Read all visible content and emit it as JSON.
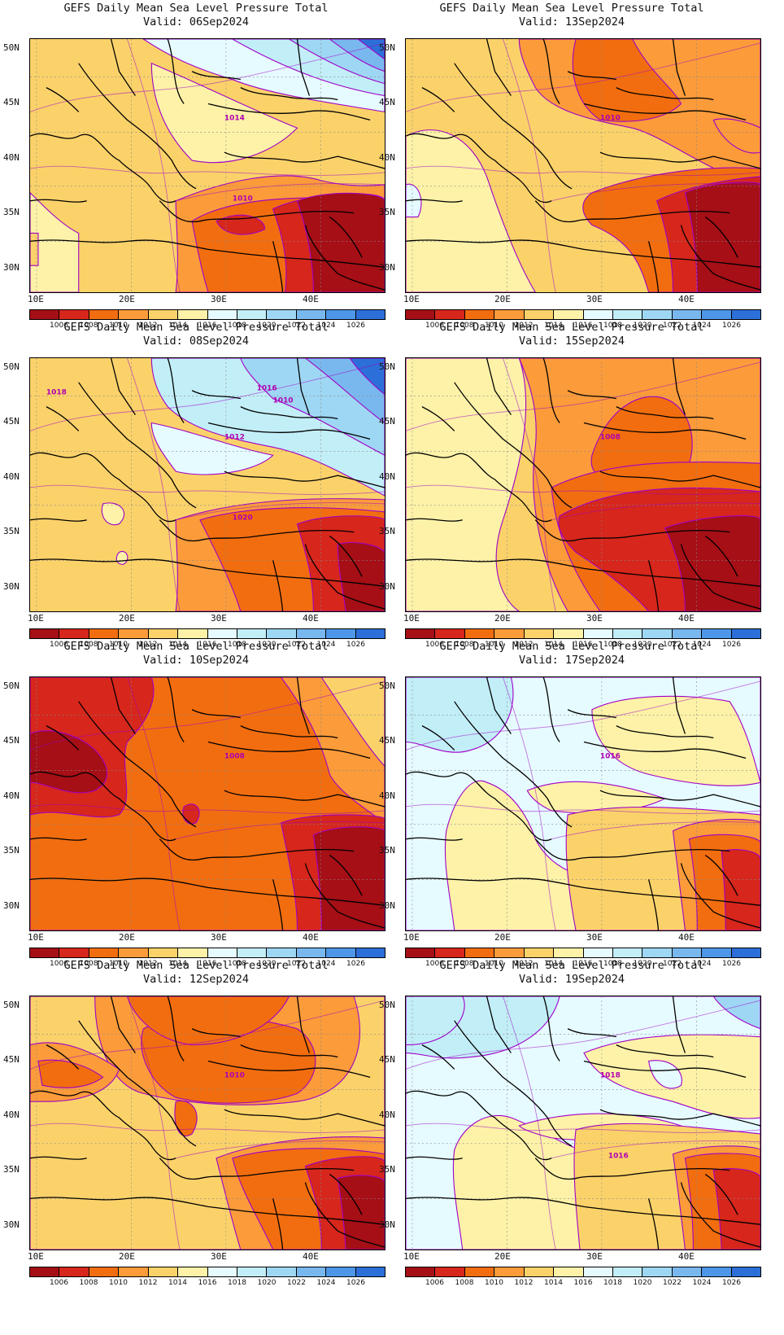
{
  "colorbar": {
    "labels": [
      "1006",
      "1008",
      "1010",
      "1012",
      "1014",
      "1016",
      "1018",
      "1020",
      "1022",
      "1024",
      "1026"
    ],
    "colors": [
      "#a50f15",
      "#d7261b",
      "#f26d0f",
      "#fb9b3a",
      "#fbd26a",
      "#fdf2a8",
      "#e6fbff",
      "#c2eef8",
      "#9ed7f4",
      "#79b8ef",
      "#4d96e8",
      "#2c6fd8"
    ]
  },
  "axes": {
    "lat_labels": [
      "50N",
      "45N",
      "40N",
      "35N",
      "30N"
    ],
    "lon_labels": [
      "10E",
      "20E",
      "30E",
      "40E"
    ]
  },
  "panels": [
    {
      "title": "GEFS Daily Mean Sea Level Pressure Total",
      "valid": "Valid: 06Sep2024",
      "labels": [
        "1014",
        "1010"
      ],
      "variant": 0
    },
    {
      "title": "GEFS Daily Mean Sea Level Pressure Total",
      "valid": "Valid: 13Sep2024",
      "labels": [
        "1010"
      ],
      "variant": 1
    },
    {
      "title": "GEFS Daily Mean Sea Level Pressure Total",
      "valid": "Valid: 08Sep2024",
      "labels": [
        "1012",
        "1020",
        "1018",
        "1016",
        "1010"
      ],
      "variant": 2
    },
    {
      "title": "GEFS Daily Mean Sea Level Pressure Total",
      "valid": "Valid: 15Sep2024",
      "labels": [
        "1008"
      ],
      "variant": 3
    },
    {
      "title": "GEFS Daily Mean Sea Level Pressure Total",
      "valid": "Valid: 10Sep2024",
      "labels": [
        "1008"
      ],
      "variant": 4
    },
    {
      "title": "GEFS Daily Mean Sea Level Pressure Total",
      "valid": "Valid: 17Sep2024",
      "labels": [
        "1016"
      ],
      "variant": 5
    },
    {
      "title": "GEFS Daily Mean Sea Level Pressure Total",
      "valid": "Valid: 12Sep2024",
      "labels": [
        "1010"
      ],
      "variant": 6
    },
    {
      "title": "GEFS Daily Mean Sea Level Pressure Total",
      "valid": "Valid: 19Sep2024",
      "labels": [
        "1018",
        "1016"
      ],
      "variant": 7
    }
  ]
}
